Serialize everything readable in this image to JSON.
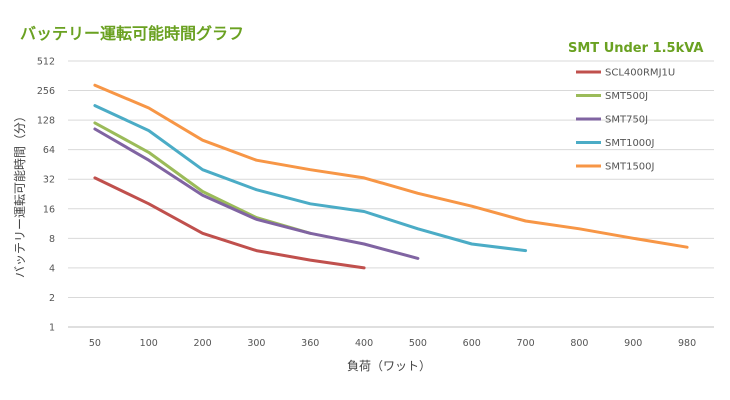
{
  "chart_data": {
    "type": "line",
    "title": "バッテリー運転可能時間グラフ",
    "xlabel": "負荷（ワット）",
    "ylabel": "バッテリー運転可能時間（分）",
    "y_scale": "log2",
    "ylim": [
      1,
      512
    ],
    "y_ticks": [
      1,
      2,
      4,
      8,
      16,
      32,
      64,
      128,
      256,
      512
    ],
    "categories": [
      "50",
      "100",
      "200",
      "300",
      "360",
      "400",
      "500",
      "600",
      "700",
      "800",
      "900",
      "980"
    ],
    "grid": "horizontal",
    "legend": {
      "title": "SMT Under 1.5kVA",
      "position": "top-right"
    },
    "series": [
      {
        "name": "SCL400RMJ1U",
        "color": "#c0504d",
        "values": [
          33,
          18,
          9,
          6,
          4.8,
          4,
          null,
          null,
          null,
          null,
          null,
          null
        ]
      },
      {
        "name": "SMT500J",
        "color": "#9bbb59",
        "values": [
          120,
          60,
          24,
          13,
          9,
          null,
          null,
          null,
          null,
          null,
          null,
          null
        ]
      },
      {
        "name": "SMT750J",
        "color": "#8064a2",
        "values": [
          104,
          50,
          22,
          12.5,
          9,
          7,
          5,
          null,
          null,
          null,
          null,
          null
        ]
      },
      {
        "name": "SMT1000J",
        "color": "#4bacc6",
        "values": [
          180,
          100,
          40,
          25,
          18,
          15,
          10,
          7,
          6,
          null,
          null,
          null
        ]
      },
      {
        "name": "SMT1500J",
        "color": "#f79646",
        "values": [
          290,
          170,
          80,
          50,
          40,
          33,
          23,
          17,
          12,
          10,
          8,
          6.5
        ]
      }
    ]
  }
}
